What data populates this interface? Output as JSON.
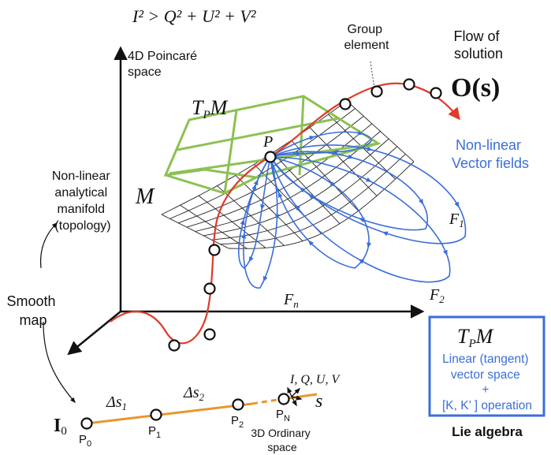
{
  "equation": "I² > Q² + U² + V²",
  "poincare_space": [
    "4D Poincaré",
    "space"
  ],
  "group_element": [
    "Group",
    "element"
  ],
  "flow_of_solution": [
    "Flow of",
    "solution"
  ],
  "o_s": "O(s)",
  "tangent_plane_label": "T",
  "tangent_plane_sub": "P",
  "tangent_plane_m": "M",
  "manifold_label": "M",
  "point_p": "P",
  "nonlinear_vector_fields": [
    "Non-linear",
    "Vector fields"
  ],
  "nonlinear_manifold": [
    "Non-linear",
    "analytical",
    "manifold",
    "(topology)"
  ],
  "field_f1": "F",
  "field_f1_sub": "1",
  "field_f2": "F",
  "field_f2_sub": "2",
  "field_fn": "F",
  "field_fn_sub": "n",
  "smooth_map": [
    "Smooth",
    "map"
  ],
  "box": {
    "title_t": "T",
    "title_sub": "P",
    "title_m": "M",
    "lines": [
      "Linear (tangent)",
      "vector space",
      "+",
      "[K, K’ ] operation"
    ]
  },
  "lie_algebra": "Lie algebra",
  "i0": "I",
  "i0_sub": "0",
  "delta_s1": "Δs",
  "delta_s1_sub": "1",
  "delta_s2": "Δs",
  "delta_s2_sub": "2",
  "iquv": "I, Q, U, V",
  "s_label": "s",
  "points": [
    {
      "label": "P",
      "sub": "0"
    },
    {
      "label": "P",
      "sub": "1"
    },
    {
      "label": "P",
      "sub": "2"
    },
    {
      "label": "P",
      "sub": "N"
    }
  ],
  "ordinary_space": [
    "3D Ordinary",
    "space"
  ],
  "colors": {
    "red_curve": "#e03a2a",
    "green_plane": "#8cc152",
    "blue": "#3a6fd8",
    "orange": "#e8962f",
    "black": "#111111"
  }
}
